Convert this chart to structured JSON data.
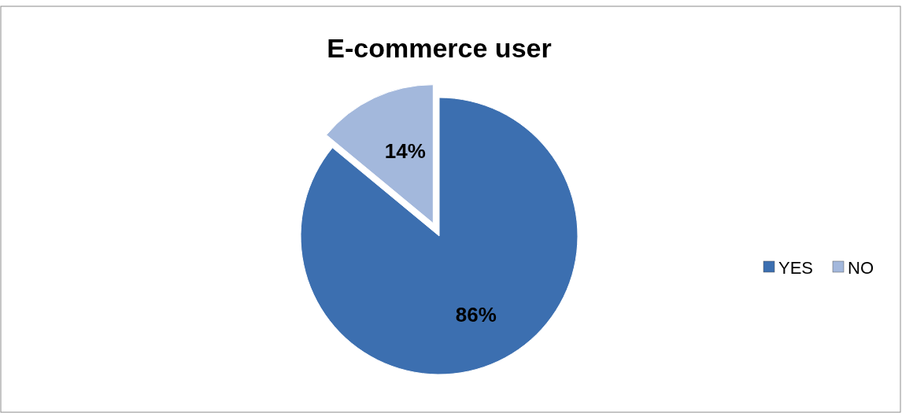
{
  "chart_data": {
    "type": "pie",
    "title": "E-commerce user",
    "categories": [
      "YES",
      "NO"
    ],
    "values": [
      86,
      14
    ],
    "colors": [
      "#3c6fb0",
      "#a3b8dc"
    ],
    "value_labels": [
      "86%",
      "14%"
    ],
    "legend": "right"
  }
}
